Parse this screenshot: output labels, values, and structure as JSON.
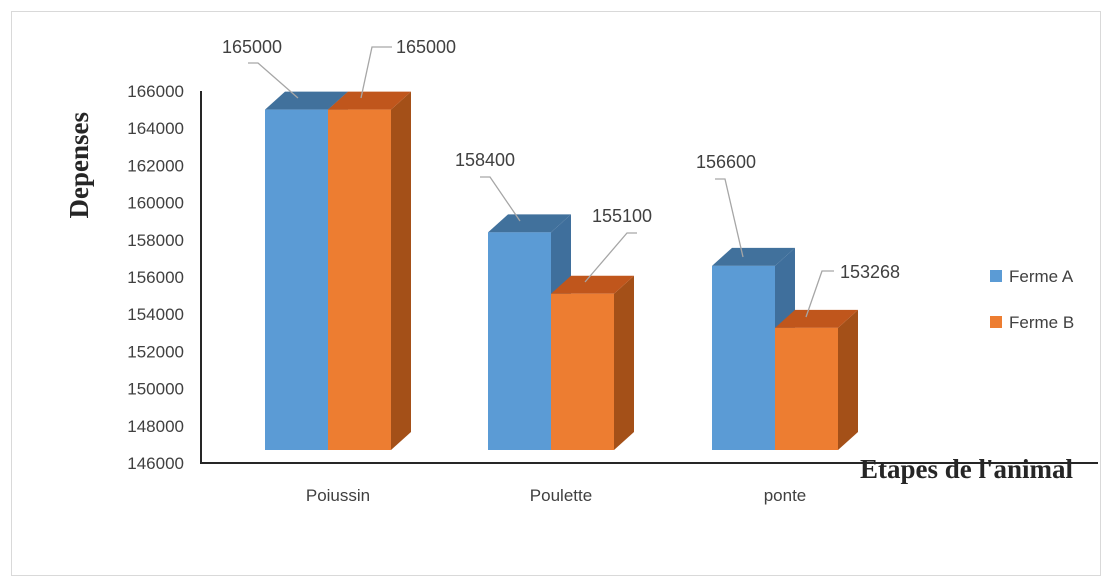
{
  "chart_data": {
    "type": "bar",
    "style": "3d-clustered-column",
    "categories": [
      "Poiussin",
      "Poulette",
      "ponte"
    ],
    "series": [
      {
        "name": "Ferme A",
        "color": "#5b9bd5",
        "side_color": "#3f6f9c",
        "top_color": "#41719c",
        "values": [
          165000,
          158400,
          156600
        ]
      },
      {
        "name": "Ferme B",
        "color": "#ed7d31",
        "side_color": "#a45018",
        "top_color": "#c0561c",
        "values": [
          165000,
          155100,
          153268
        ]
      }
    ],
    "data_labels": [
      [
        "165000",
        "158400",
        "156600"
      ],
      [
        "165000",
        "155100",
        "153268"
      ]
    ],
    "ylabel": "Depenses",
    "xlabel": "Etapes de l'animal",
    "ylim": [
      146000,
      166000
    ],
    "yticks": [
      146000,
      148000,
      150000,
      152000,
      154000,
      156000,
      158000,
      160000,
      162000,
      164000,
      166000
    ],
    "grid": false,
    "legend_position": "right"
  }
}
